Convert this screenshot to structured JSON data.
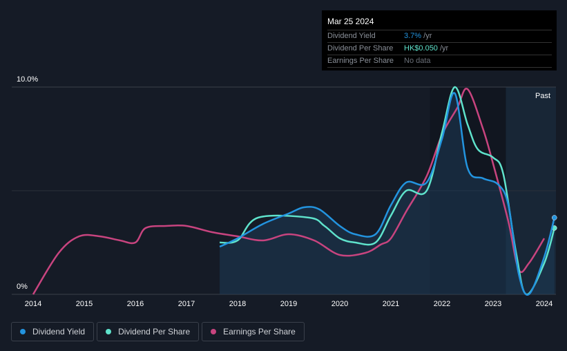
{
  "chart_data": {
    "type": "line",
    "ylim": [
      0,
      10
    ],
    "xlim": [
      2013.6,
      2024.23
    ],
    "y_tick_labels": [
      "0%",
      "10.0%"
    ],
    "x_ticks": [
      2014,
      2015,
      2016,
      2017,
      2018,
      2019,
      2020,
      2021,
      2022,
      2023,
      2024
    ],
    "past_region_label": "Past",
    "past_region_start": 2023.25,
    "series": [
      {
        "name": "Dividend Yield",
        "color": "#2394df",
        "unit": "%",
        "points": [
          [
            2017.65,
            2.3
          ],
          [
            2018.0,
            2.7
          ],
          [
            2018.5,
            3.4
          ],
          [
            2019.0,
            3.9
          ],
          [
            2019.3,
            4.2
          ],
          [
            2019.6,
            4.1
          ],
          [
            2020.0,
            3.3
          ],
          [
            2020.3,
            2.9
          ],
          [
            2020.7,
            2.9
          ],
          [
            2021.0,
            4.3
          ],
          [
            2021.3,
            5.4
          ],
          [
            2021.7,
            5.4
          ],
          [
            2022.0,
            7.5
          ],
          [
            2022.25,
            9.7
          ],
          [
            2022.5,
            6.1
          ],
          [
            2022.8,
            5.6
          ],
          [
            2023.1,
            5.3
          ],
          [
            2023.3,
            4.3
          ],
          [
            2023.5,
            1.0
          ],
          [
            2023.7,
            0
          ],
          [
            2024.0,
            1.8
          ],
          [
            2024.2,
            3.7
          ]
        ]
      },
      {
        "name": "Dividend Per Share",
        "color": "#5fe3cc",
        "points": [
          [
            2017.65,
            2.5
          ],
          [
            2018.0,
            2.6
          ],
          [
            2018.4,
            3.7
          ],
          [
            2019.4,
            3.7
          ],
          [
            2019.7,
            3.3
          ],
          [
            2020.0,
            2.7
          ],
          [
            2020.3,
            2.5
          ],
          [
            2020.7,
            2.5
          ],
          [
            2021.0,
            3.8
          ],
          [
            2021.3,
            5.0
          ],
          [
            2021.7,
            5.0
          ],
          [
            2022.0,
            7.8
          ],
          [
            2022.25,
            10.0
          ],
          [
            2022.5,
            8.2
          ],
          [
            2022.7,
            7.0
          ],
          [
            2023.0,
            6.6
          ],
          [
            2023.2,
            5.8
          ],
          [
            2023.45,
            2.0
          ],
          [
            2023.65,
            0
          ],
          [
            2024.0,
            1.5
          ],
          [
            2024.2,
            3.2
          ]
        ]
      },
      {
        "name": "Earnings Per Share",
        "color": "#c8447f",
        "points": [
          [
            2014.0,
            0
          ],
          [
            2014.5,
            2.0
          ],
          [
            2014.9,
            2.8
          ],
          [
            2015.3,
            2.8
          ],
          [
            2015.7,
            2.6
          ],
          [
            2016.0,
            2.5
          ],
          [
            2016.2,
            3.2
          ],
          [
            2016.6,
            3.3
          ],
          [
            2017.0,
            3.3
          ],
          [
            2017.5,
            3.0
          ],
          [
            2018.0,
            2.8
          ],
          [
            2018.5,
            2.6
          ],
          [
            2019.0,
            2.9
          ],
          [
            2019.5,
            2.6
          ],
          [
            2020.0,
            1.9
          ],
          [
            2020.5,
            2.0
          ],
          [
            2020.8,
            2.4
          ],
          [
            2021.0,
            2.7
          ],
          [
            2021.3,
            4.0
          ],
          [
            2021.7,
            5.7
          ],
          [
            2022.0,
            7.7
          ],
          [
            2022.3,
            9.0
          ],
          [
            2022.5,
            9.9
          ],
          [
            2022.8,
            8.0
          ],
          [
            2023.0,
            6.3
          ],
          [
            2023.3,
            3.5
          ],
          [
            2023.5,
            1.2
          ],
          [
            2023.7,
            1.5
          ],
          [
            2024.0,
            2.7
          ]
        ]
      }
    ]
  },
  "tooltip": {
    "date": "Mar 25 2024",
    "rows": [
      {
        "label": "Dividend Yield",
        "value": "3.7%",
        "suffix": " /yr",
        "color": "#2394df"
      },
      {
        "label": "Dividend Per Share",
        "value": "HK$0.050",
        "suffix": " /yr",
        "color": "#5fe3cc"
      },
      {
        "label": "Earnings Per Share",
        "value": "No data",
        "suffix": "",
        "color": "#6b7079"
      }
    ]
  },
  "legend": [
    {
      "label": "Dividend Yield",
      "color": "#2394df"
    },
    {
      "label": "Dividend Per Share",
      "color": "#5fe3cc"
    },
    {
      "label": "Earnings Per Share",
      "color": "#c8447f"
    }
  ]
}
